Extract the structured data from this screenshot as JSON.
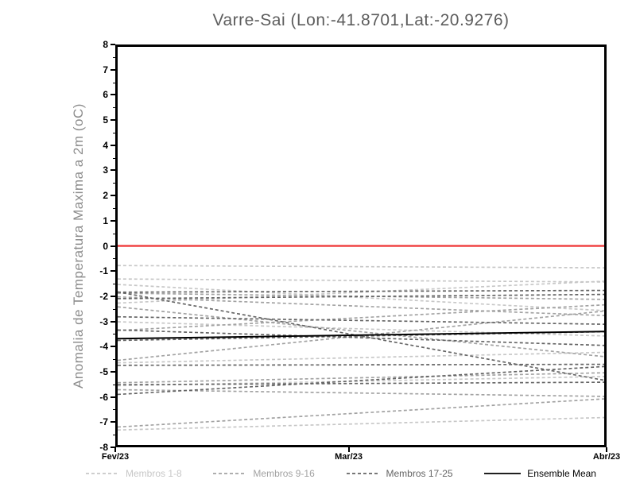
{
  "title": "Varre-Sai (Lon:-41.8701,Lat:-20.9276)",
  "chart_data": {
    "type": "line",
    "title": "Varre-Sai (Lon:-41.8701,Lat:-20.9276)",
    "ylabel": "Anomalia de Temperatura Maxima a 2m (oC)",
    "xlabel": "",
    "ylim": [
      -8,
      8
    ],
    "ytick_major_step": 1,
    "ytick_minor_step": 0.5,
    "grid": "off",
    "legend_position": "bottom",
    "x_ticks": [
      {
        "label": "Fev/23",
        "frac": 0
      },
      {
        "label": "Mar/23",
        "frac": 0.475
      },
      {
        "label": "Abr/23",
        "frac": 1
      }
    ],
    "zero_line": {
      "value": 0,
      "color": "#f04343"
    },
    "groups": [
      {
        "label": "Membros 1-8",
        "color": "#c7c7c7",
        "style": "dashed"
      },
      {
        "label": "Membros 9-16",
        "color": "#a2a2a2",
        "style": "dashed"
      },
      {
        "label": "Membros 17-25",
        "color": "#646464",
        "style": "dashed"
      }
    ],
    "members": [
      {
        "group": 0,
        "start": -0.79,
        "end": -0.88
      },
      {
        "group": 0,
        "start": -1.33,
        "end": -1.45
      },
      {
        "group": 0,
        "start": -1.55,
        "end": -2.6
      },
      {
        "group": 0,
        "start": -2.3,
        "end": -1.42
      },
      {
        "group": 0,
        "start": -5.62,
        "end": -5.25
      },
      {
        "group": 0,
        "start": -3.05,
        "end": -3.62
      },
      {
        "group": 0,
        "start": -4.7,
        "end": -4.28
      },
      {
        "group": 0,
        "start": -7.4,
        "end": -6.9
      },
      {
        "group": 1,
        "start": -1.9,
        "end": -2.15
      },
      {
        "group": 1,
        "start": -2.05,
        "end": -2.8
      },
      {
        "group": 1,
        "start": -2.45,
        "end": -4.45
      },
      {
        "group": 1,
        "start": -3.4,
        "end": -2.37
      },
      {
        "group": 1,
        "start": -4.6,
        "end": -2.62
      },
      {
        "group": 1,
        "start": -5.5,
        "end": -5.1
      },
      {
        "group": 1,
        "start": -5.78,
        "end": -6.05
      },
      {
        "group": 1,
        "start": -7.28,
        "end": -6.15
      },
      {
        "group": 2,
        "start": -1.86,
        "end": -1.79
      },
      {
        "group": 2,
        "start": -1.85,
        "end": -5.4
      },
      {
        "group": 2,
        "start": -2.12,
        "end": -1.95
      },
      {
        "group": 2,
        "start": -2.85,
        "end": -3.15
      },
      {
        "group": 2,
        "start": -3.38,
        "end": -4.0
      },
      {
        "group": 2,
        "start": -3.8,
        "end": -3.45
      },
      {
        "group": 2,
        "start": -4.8,
        "end": -4.76
      },
      {
        "group": 2,
        "start": -5.58,
        "end": -5.48
      },
      {
        "group": 2,
        "start": -5.97,
        "end": -4.85
      }
    ],
    "ensemble_mean": {
      "label": "Ensemble Mean",
      "color": "#000000",
      "start": -3.73,
      "end": -3.44
    }
  }
}
